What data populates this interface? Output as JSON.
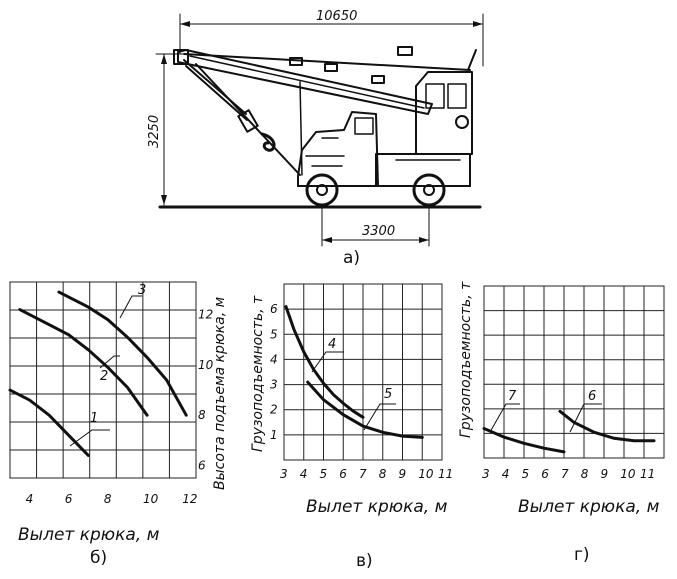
{
  "crane": {
    "dim_length": "10650",
    "dim_height": "3250",
    "dim_base": "3300",
    "caption": "а)"
  },
  "chart_data": [
    {
      "type": "line",
      "caption": "б)",
      "xlabel": "Вылет крюка, м",
      "ylabel": "Высота подъема крюка, м",
      "x_ticks": [
        "4",
        "6",
        "8",
        "10",
        "12"
      ],
      "y_ticks": [
        "6",
        "8",
        "10",
        "12"
      ],
      "xlim": [
        3,
        12.5
      ],
      "ylim": [
        5.5,
        13.3
      ],
      "series": [
        {
          "name": "1",
          "points": [
            [
              3,
              9
            ],
            [
              4,
              8.6
            ],
            [
              5,
              8.0
            ],
            [
              6,
              7.2
            ],
            [
              7,
              6.4
            ]
          ]
        },
        {
          "name": "2",
          "points": [
            [
              3.5,
              12.2
            ],
            [
              5,
              11.6
            ],
            [
              6,
              11.2
            ],
            [
              7,
              10.6
            ],
            [
              8,
              9.9
            ],
            [
              9,
              9.1
            ],
            [
              10,
              8.0
            ]
          ]
        },
        {
          "name": "3",
          "points": [
            [
              5.5,
              12.9
            ],
            [
              7,
              12.3
            ],
            [
              8,
              11.8
            ],
            [
              9,
              11.1
            ],
            [
              10,
              10.3
            ],
            [
              11,
              9.4
            ],
            [
              12,
              8.0
            ]
          ]
        }
      ],
      "curve_labels": [
        "1",
        "2",
        "3"
      ]
    },
    {
      "type": "line",
      "caption": "в)",
      "xlabel": "Вылет крюка, м",
      "ylabel": "Грузоподъемность, т",
      "x_ticks": [
        "3",
        "4",
        "5",
        "6",
        "7",
        "8",
        "9",
        "10",
        "11"
      ],
      "y_ticks": [
        "1",
        "2",
        "3",
        "4",
        "5",
        "6"
      ],
      "xlim": [
        3,
        11
      ],
      "ylim": [
        0,
        7
      ],
      "series": [
        {
          "name": "4",
          "points": [
            [
              3.1,
              6.1
            ],
            [
              3.5,
              5.2
            ],
            [
              4,
              4.3
            ],
            [
              4.5,
              3.6
            ],
            [
              5,
              3.05
            ],
            [
              5.5,
              2.6
            ],
            [
              6,
              2.25
            ],
            [
              6.5,
              1.95
            ],
            [
              7,
              1.7
            ]
          ]
        },
        {
          "name": "5",
          "points": [
            [
              4.2,
              3.1
            ],
            [
              5,
              2.4
            ],
            [
              6,
              1.8
            ],
            [
              7,
              1.35
            ],
            [
              8,
              1.1
            ],
            [
              9,
              0.95
            ],
            [
              10,
              0.9
            ]
          ]
        }
      ],
      "curve_labels": [
        "4",
        "5"
      ]
    },
    {
      "type": "line",
      "caption": "г)",
      "xlabel": "Вылет крюка, м",
      "ylabel": "Грузоподъемность, т",
      "x_ticks": [
        "3",
        "4",
        "5",
        "6",
        "7",
        "8",
        "9",
        "10",
        "11"
      ],
      "xlim": [
        3,
        12
      ],
      "ylim": [
        0,
        7
      ],
      "series": [
        {
          "name": "7",
          "points": [
            [
              3,
              1.2
            ],
            [
              4,
              0.85
            ],
            [
              5,
              0.6
            ],
            [
              6,
              0.4
            ],
            [
              7,
              0.25
            ]
          ]
        },
        {
          "name": "6",
          "points": [
            [
              6.8,
              1.9
            ],
            [
              7.5,
              1.45
            ],
            [
              8.5,
              1.05
            ],
            [
              9.5,
              0.8
            ],
            [
              10.5,
              0.7
            ],
            [
              11.5,
              0.7
            ]
          ]
        }
      ],
      "curve_labels": [
        "7",
        "6"
      ]
    }
  ]
}
